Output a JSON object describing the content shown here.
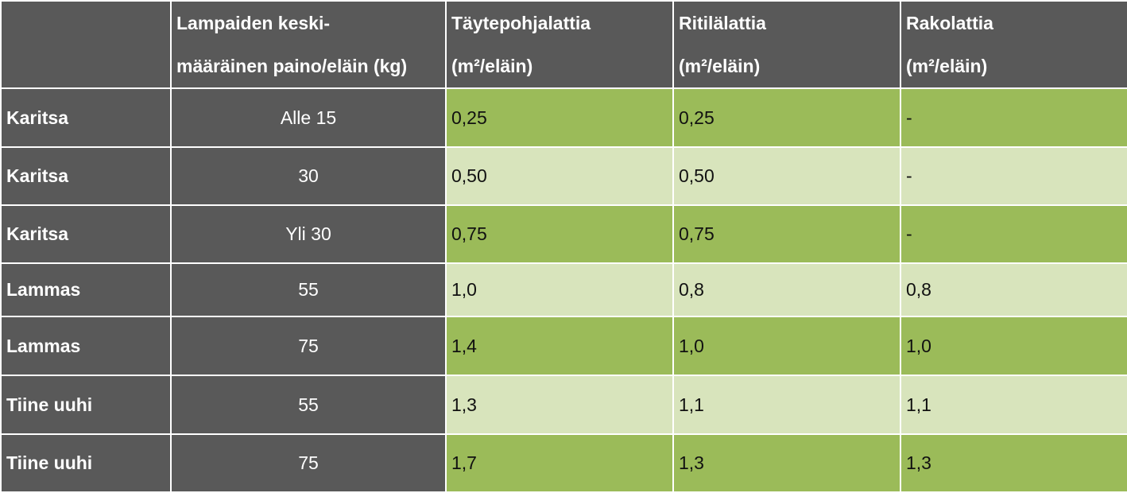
{
  "table": {
    "headers": [
      {
        "line1": "",
        "line2": ""
      },
      {
        "line1": "Lampaiden keski-",
        "line2": "määräinen paino/eläin (kg)"
      },
      {
        "line1": "Täytepohjalattia",
        "line2": "(m²/eläin)"
      },
      {
        "line1": "Ritilälattia",
        "line2": "(m²/eläin)"
      },
      {
        "line1": "Rakolattia",
        "line2": "(m²/eläin)"
      }
    ],
    "rows": [
      {
        "animal": "Karitsa",
        "weight": "Alle 15",
        "taytepohja": "0,25",
        "ritila": "0,25",
        "rako": "-"
      },
      {
        "animal": "Karitsa",
        "weight": "30",
        "taytepohja": "0,50",
        "ritila": "0,50",
        "rako": "-"
      },
      {
        "animal": "Karitsa",
        "weight": "Yli 30",
        "taytepohja": "0,75",
        "ritila": "0,75",
        "rako": "-"
      },
      {
        "animal": "Lammas",
        "weight": "55",
        "taytepohja": "1,0",
        "ritila": "0,8",
        "rako": "0,8"
      },
      {
        "animal": "Lammas",
        "weight": "75",
        "taytepohja": "1,4",
        "ritila": "1,0",
        "rako": "1,0"
      },
      {
        "animal": "Tiine uuhi",
        "weight": "55",
        "taytepohja": "1,3",
        "ritila": "1,1",
        "rako": "1,1"
      },
      {
        "animal": "Tiine uuhi",
        "weight": "75",
        "taytepohja": "1,7",
        "ritila": "1,3",
        "rako": "1,3"
      }
    ]
  },
  "colors": {
    "header_bg": "#595959",
    "dark_green": "#9bbb59",
    "light_green": "#d8e4bc"
  }
}
